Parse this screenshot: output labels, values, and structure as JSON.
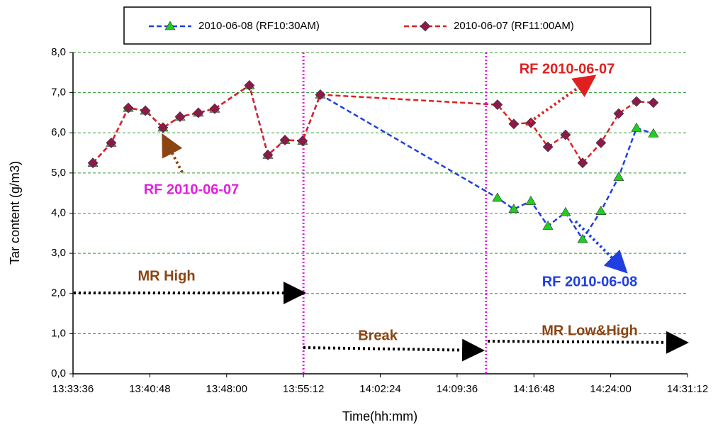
{
  "chart_data": {
    "type": "line",
    "x_label": "Time(hh:mm)",
    "y_label": "Tar content (g/m3)",
    "x": [
      "13:35:28",
      "13:37:11",
      "13:38:47",
      "13:40:23",
      "13:42:02",
      "13:43:38",
      "13:45:21",
      "13:46:53",
      "13:50:08",
      "13:51:52",
      "13:53:28",
      "13:55:07",
      "13:56:47",
      "14:13:23",
      "14:14:55",
      "14:16:31",
      "14:18:07",
      "14:19:46",
      "14:21:22",
      "14:23:05",
      "14:24:45",
      "14:26:25",
      "14:28:00"
    ],
    "series": [
      {
        "name": "2010-06-08 (RF10:30AM)",
        "color": "#1f3fe0",
        "marker": "triangle",
        "marker_color": "#22cc22",
        "values": [
          5.25,
          5.75,
          6.62,
          6.55,
          6.13,
          6.4,
          6.5,
          6.6,
          7.18,
          5.45,
          5.82,
          5.8,
          6.95,
          4.38,
          4.1,
          4.3,
          3.68,
          4.02,
          3.35,
          4.05,
          4.9,
          6.12,
          5.98
        ]
      },
      {
        "name": "2010-06-07 (RF11:00AM)",
        "color": "#e02020",
        "marker": "diamond",
        "marker_color": "#8b1a4a",
        "values": [
          5.25,
          5.75,
          6.62,
          6.55,
          6.13,
          6.4,
          6.5,
          6.6,
          7.18,
          5.45,
          5.82,
          5.8,
          6.95,
          6.7,
          6.22,
          6.25,
          5.65,
          5.95,
          5.25,
          5.75,
          6.48,
          6.78,
          6.75
        ]
      }
    ],
    "xlim": [
      "13:33:36",
      "14:31:12"
    ],
    "xticks": [
      "13:33:36",
      "13:40:48",
      "13:48:00",
      "13:55:12",
      "14:02:24",
      "14:09:36",
      "14:16:48",
      "14:24:00",
      "14:31:12"
    ],
    "ylim": [
      0,
      8
    ],
    "yticks": [
      {
        "value": 0,
        "label": "0,0"
      },
      {
        "value": 1,
        "label": "1,0"
      },
      {
        "value": 2,
        "label": "2,0"
      },
      {
        "value": 3,
        "label": "3,0"
      },
      {
        "value": 4,
        "label": "4,0"
      },
      {
        "value": 5,
        "label": "5,0"
      },
      {
        "value": 6,
        "label": "6,0"
      },
      {
        "value": 7,
        "label": "7,0"
      },
      {
        "value": 8,
        "label": "8,0"
      }
    ],
    "grid": true,
    "grid_color": "#2a9a2a",
    "vlines": [
      "13:55:12",
      "14:12:19"
    ],
    "vline_color": "#e020e0",
    "legend": "top",
    "annotations": [
      "RF 2010-06-07",
      "RF 2010-06-07",
      "RF 2010-06-08",
      "MR High",
      "Break",
      "MR Low&High"
    ]
  }
}
